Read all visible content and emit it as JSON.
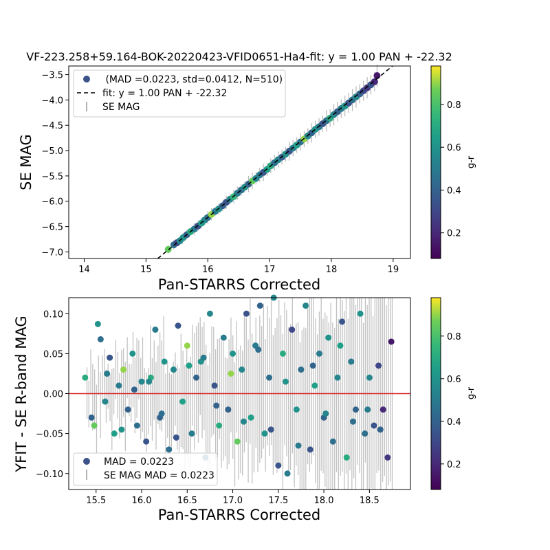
{
  "chart_data": [
    {
      "type": "scatter",
      "title": "VF-223.258+59.164-BOK-20220423-VFID0651-Ha4-fit: y = 1.00 PAN + -22.32",
      "xlabel": "Pan-STARRS Corrected",
      "ylabel": "SE MAG",
      "xlim": [
        13.75,
        19.28
      ],
      "ylim": [
        -7.13,
        -3.33
      ],
      "xticks": [
        "14",
        "15",
        "16",
        "17",
        "18",
        "19"
      ],
      "yticks": [
        "-3.5",
        "-4.0",
        "-4.5",
        "-5.0",
        "-5.5",
        "-6.0",
        "-6.5",
        "-7.0"
      ],
      "legend_position": "upper-left",
      "legend": {
        "points_label": " (MAD =0.0223, std=0.0412, N=510)",
        "fit_label": "fit: y = 1.00 PAN + -22.32",
        "err_label": "SE MAG"
      },
      "fit": {
        "slope": 1.0,
        "intercept": -22.32,
        "color": "#000000",
        "style": "dashed"
      },
      "colorbar": {
        "label": "g-r",
        "range": [
          0.08,
          0.98
        ],
        "ticks": [
          "0.2",
          "0.4",
          "0.6",
          "0.8"
        ],
        "colormap": "viridis"
      },
      "series": {
        "x": [
          15.36,
          15.45,
          15.5,
          15.55,
          15.6,
          15.66,
          15.72,
          15.78,
          15.84,
          15.9,
          15.95,
          16.0,
          16.06,
          16.12,
          16.18,
          16.24,
          16.3,
          16.36,
          16.42,
          16.48,
          16.54,
          16.6,
          16.66,
          16.72,
          16.78,
          16.84,
          16.9,
          16.96,
          17.02,
          17.08,
          17.14,
          17.2,
          17.26,
          17.32,
          17.38,
          17.44,
          17.5,
          17.56,
          17.62,
          17.68,
          17.74,
          17.8,
          17.86,
          17.92,
          17.98,
          18.04,
          18.1,
          18.16,
          18.22,
          18.28,
          18.34,
          18.4,
          18.46,
          18.52,
          18.58,
          18.64,
          18.7,
          18.74
        ],
        "y": [
          -6.95,
          -6.86,
          -6.82,
          -6.78,
          -6.72,
          -6.66,
          -6.6,
          -6.55,
          -6.49,
          -6.43,
          -6.37,
          -6.32,
          -6.26,
          -6.2,
          -6.15,
          -6.09,
          -6.02,
          -5.96,
          -5.91,
          -5.84,
          -5.78,
          -5.72,
          -5.66,
          -5.6,
          -5.55,
          -5.48,
          -5.43,
          -5.37,
          -5.3,
          -5.24,
          -5.18,
          -5.13,
          -5.07,
          -5.01,
          -4.95,
          -4.89,
          -4.83,
          -4.77,
          -4.71,
          -4.65,
          -4.58,
          -4.53,
          -4.47,
          -4.41,
          -4.36,
          -4.29,
          -4.23,
          -4.17,
          -4.12,
          -4.06,
          -4.0,
          -3.94,
          -3.88,
          -3.82,
          -3.76,
          -3.7,
          -3.64,
          -3.52
        ],
        "color_gr": [
          0.85,
          0.45,
          0.3,
          0.55,
          0.6,
          0.4,
          0.7,
          0.5,
          0.35,
          0.65,
          0.55,
          0.45,
          0.9,
          0.5,
          0.6,
          0.4,
          0.35,
          0.55,
          0.75,
          0.5,
          0.45,
          0.6,
          0.4,
          0.85,
          0.55,
          0.5,
          0.35,
          0.65,
          0.7,
          0.45,
          0.55,
          0.4,
          0.6,
          0.35,
          0.5,
          0.65,
          0.45,
          0.9,
          0.55,
          0.4,
          0.6,
          0.5,
          0.35,
          0.45,
          0.7,
          0.55,
          0.4,
          0.5,
          0.6,
          0.35,
          0.45,
          0.55,
          0.4,
          0.3,
          0.25,
          0.35,
          0.2,
          0.15
        ]
      }
    },
    {
      "type": "scatter",
      "title": "",
      "xlabel": "Pan-STARRS Corrected",
      "ylabel": "YFIT - SE R-band MAG",
      "xlim": [
        15.2,
        18.95
      ],
      "ylim": [
        -0.12,
        0.12
      ],
      "xticks": [
        "15.5",
        "16.0",
        "16.5",
        "17.0",
        "17.5",
        "18.0",
        "18.5"
      ],
      "yticks": [
        "0.10",
        "0.05",
        "0.00",
        "-0.05",
        "-0.10"
      ],
      "legend_position": "lower-left",
      "legend": {
        "points_label": "MAD = 0.0223",
        "err_label": "SE MAG MAD = 0.0223"
      },
      "hline": {
        "y": 0.0,
        "color": "#d62728"
      },
      "colorbar": {
        "label": "g-r",
        "range": [
          0.08,
          0.98
        ],
        "ticks": [
          "0.2",
          "0.4",
          "0.6",
          "0.8"
        ],
        "colormap": "viridis"
      },
      "series": {
        "x": [
          15.38,
          15.45,
          15.52,
          15.55,
          15.6,
          15.65,
          15.7,
          15.75,
          15.8,
          15.85,
          15.9,
          15.95,
          16.0,
          16.05,
          16.1,
          16.15,
          16.2,
          16.25,
          16.3,
          16.35,
          16.4,
          16.45,
          16.5,
          16.55,
          16.6,
          16.65,
          16.7,
          16.75,
          16.8,
          16.85,
          16.9,
          16.95,
          17.0,
          17.05,
          17.1,
          17.15,
          17.2,
          17.25,
          17.3,
          17.35,
          17.4,
          17.45,
          17.5,
          17.55,
          17.6,
          17.65,
          17.7,
          17.75,
          17.8,
          17.85,
          17.9,
          17.95,
          18.0,
          18.05,
          18.1,
          18.15,
          18.2,
          18.25,
          18.3,
          18.35,
          18.4,
          18.45,
          18.5,
          18.55,
          18.6,
          18.65,
          18.7,
          18.74,
          15.48,
          15.62,
          15.78,
          15.92,
          16.08,
          16.22,
          16.38,
          16.52,
          16.68,
          16.82,
          16.98,
          17.12,
          17.28,
          17.42,
          17.58,
          17.72,
          17.88,
          18.02,
          18.18,
          18.32,
          18.48,
          18.62
        ],
        "y": [
          0.02,
          -0.03,
          0.087,
          0.068,
          -0.01,
          0.045,
          -0.05,
          0.01,
          0.03,
          -0.02,
          0.05,
          -0.04,
          0.015,
          -0.06,
          0.02,
          0.08,
          -0.03,
          0.04,
          -0.07,
          0.03,
          0.085,
          -0.01,
          0.06,
          -0.05,
          0.02,
          0.04,
          -0.08,
          0.1,
          0.01,
          -0.04,
          0.07,
          -0.02,
          0.05,
          -0.06,
          0.03,
          0.1,
          -0.03,
          0.06,
          0.11,
          -0.05,
          0.02,
          0.12,
          -0.09,
          0.05,
          -0.1,
          0.08,
          -0.02,
          0.03,
          0.11,
          -0.07,
          0.01,
          0.05,
          -0.03,
          0.07,
          -0.06,
          0.02,
          0.09,
          -0.08,
          0.04,
          -0.02,
          0.1,
          -0.05,
          0.02,
          -0.04,
          0.035,
          -0.02,
          -0.08,
          0.065,
          -0.04,
          0.025,
          -0.045,
          0.005,
          0.015,
          -0.025,
          -0.055,
          0.035,
          0.045,
          -0.015,
          0.025,
          -0.035,
          0.055,
          -0.045,
          0.015,
          -0.065,
          0.035,
          -0.025,
          0.06,
          -0.035,
          -0.02,
          -0.045
        ],
        "color_gr": [
          0.7,
          0.4,
          0.6,
          0.45,
          0.55,
          0.35,
          0.65,
          0.5,
          0.9,
          0.4,
          0.6,
          0.45,
          0.55,
          0.35,
          0.7,
          0.5,
          0.4,
          0.6,
          0.45,
          0.55,
          0.35,
          0.65,
          0.9,
          0.5,
          0.4,
          0.6,
          0.45,
          0.55,
          0.35,
          0.7,
          0.5,
          0.4,
          0.6,
          0.85,
          0.55,
          0.35,
          0.65,
          0.5,
          0.4,
          0.6,
          0.45,
          0.55,
          0.35,
          0.7,
          0.5,
          0.3,
          0.6,
          0.45,
          0.55,
          0.35,
          0.65,
          0.5,
          0.4,
          0.6,
          0.45,
          0.55,
          0.35,
          0.7,
          0.5,
          0.4,
          0.6,
          0.45,
          0.55,
          0.35,
          0.3,
          0.2,
          0.25,
          0.15,
          0.85,
          0.5,
          0.6,
          0.4,
          0.55,
          0.45,
          0.35,
          0.65,
          0.5,
          0.4,
          0.9,
          0.55,
          0.45,
          0.35,
          0.6,
          0.5,
          0.4,
          0.55,
          0.65,
          0.45,
          0.5,
          0.4
        ]
      }
    }
  ]
}
